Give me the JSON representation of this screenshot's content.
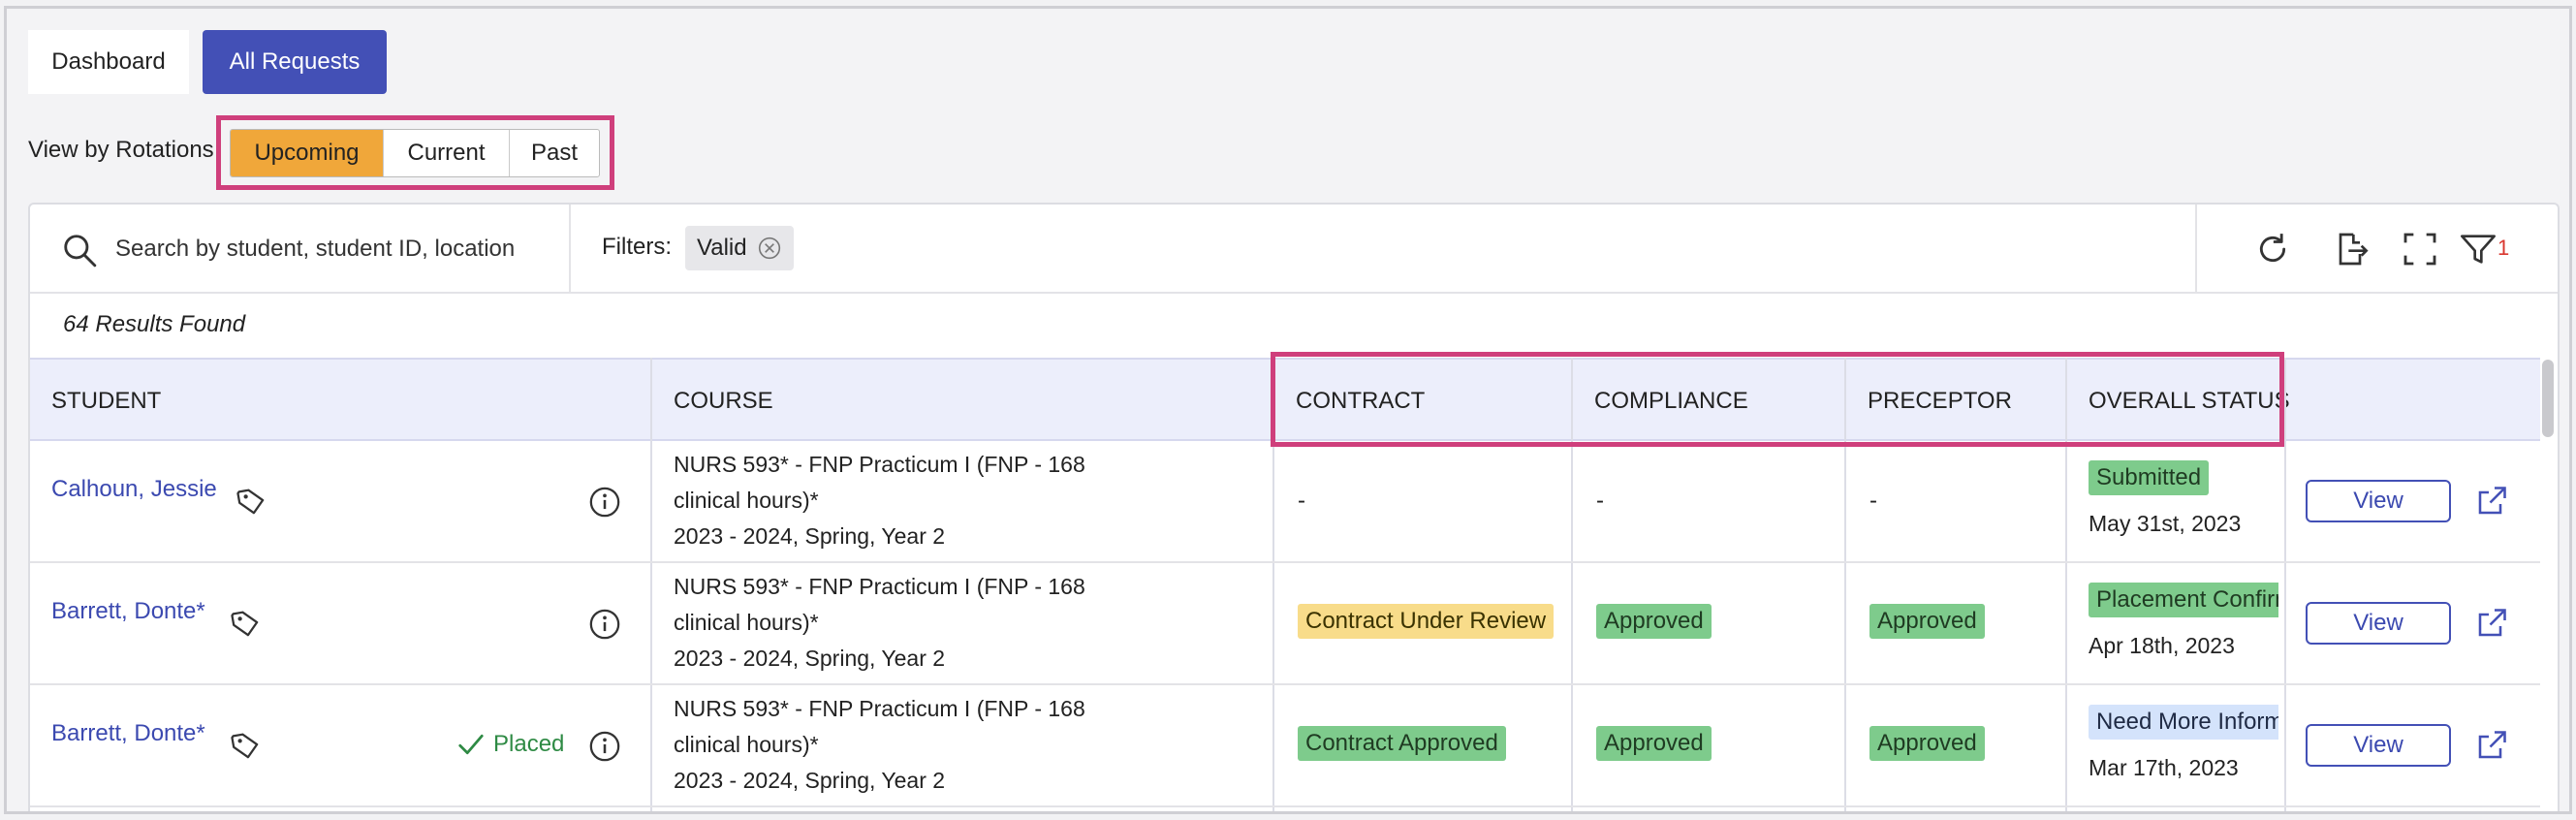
{
  "tabs": {
    "dashboard": "Dashboard",
    "all_requests": "All Requests"
  },
  "rotations": {
    "label": "View by Rotations",
    "options": [
      "Upcoming",
      "Current",
      "Past"
    ],
    "selected": "Upcoming"
  },
  "search": {
    "placeholder": "Search by student, student ID, location"
  },
  "filters": {
    "label": "Filters:",
    "chips": [
      "Valid"
    ],
    "count": "1"
  },
  "results_text": "64 Results Found",
  "table": {
    "columns": [
      "STUDENT",
      "COURSE",
      "CONTRACT",
      "COMPLIANCE",
      "PRECEPTOR",
      "OVERALL STATUS"
    ],
    "rows": [
      {
        "student": "Calhoun, Jessie",
        "placed": "",
        "course_lines": [
          "NURS 593* - FNP Practicum I (FNP - 168",
          "clinical hours)*",
          "2023 - 2024, Spring, Year 2"
        ],
        "contract": "-",
        "compliance": "-",
        "preceptor": "-",
        "status": "Submitted",
        "status_date": "May 31st, 2023",
        "view": "View"
      },
      {
        "student": "Barrett, Donte*",
        "placed": "",
        "course_lines": [
          "NURS 593* - FNP Practicum I (FNP - 168",
          "clinical hours)*",
          "2023 - 2024, Spring, Year 2"
        ],
        "contract": "Contract Under Review",
        "compliance": "Approved",
        "preceptor": "Approved",
        "status": "Placement Confirmed",
        "status_date": "Apr 18th, 2023",
        "view": "View"
      },
      {
        "student": "Barrett, Donte*",
        "placed": "Placed",
        "course_lines": [
          "NURS 593* - FNP Practicum I (FNP - 168",
          "clinical hours)*",
          "2023 - 2024, Spring, Year 2"
        ],
        "contract": "Contract Approved",
        "compliance": "Approved",
        "preceptor": "Approved",
        "status": "Need More Information",
        "status_date": "Mar 17th, 2023",
        "view": "View"
      }
    ]
  },
  "colors": {
    "primary": "#4350b6",
    "highlight": "#cf3f7c",
    "upcoming": "#f0a73a",
    "approved": "#7ecb8c",
    "review": "#f8dc8a",
    "info": "#d4e3fb"
  },
  "icons": [
    "search-icon",
    "close-circle-icon",
    "refresh-icon",
    "export-icon",
    "fullscreen-icon",
    "filter-icon",
    "tag-icon",
    "info-icon",
    "check-icon",
    "external-link-icon"
  ]
}
